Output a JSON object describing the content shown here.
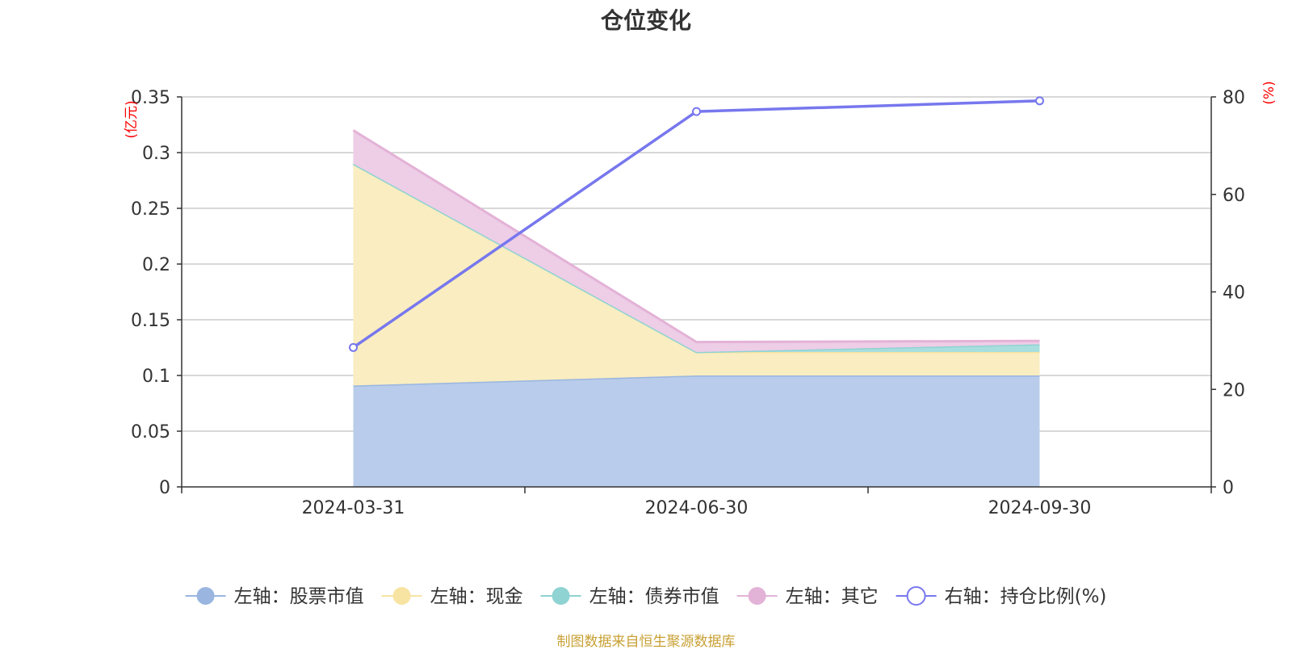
{
  "chart_data": {
    "type": "area",
    "title": "仓位变化",
    "categories": [
      "2024-03-31",
      "2024-06-30",
      "2024-09-30"
    ],
    "left_axis": {
      "unit": "(亿元)",
      "ylim": [
        0,
        0.35
      ],
      "ticks": [
        "0",
        "0.05",
        "0.1",
        "0.15",
        "0.2",
        "0.25",
        "0.3",
        "0.35"
      ]
    },
    "right_axis": {
      "unit": "(%)",
      "ylim": [
        0,
        80
      ],
      "ticks": [
        "0",
        "20",
        "40",
        "60",
        "80"
      ]
    },
    "stack_order": [
      "股票市值",
      "现金",
      "债券市值",
      "其它"
    ],
    "series": [
      {
        "key": "股票市值",
        "name": "左轴：股票市值",
        "axis": "left",
        "kind": "area",
        "values": [
          0.091,
          0.1,
          0.1
        ],
        "color": "#9ab6e0",
        "fill": "#b9cceb"
      },
      {
        "key": "现金",
        "name": "左轴：现金",
        "axis": "left",
        "kind": "area",
        "values": [
          0.199,
          0.021,
          0.021
        ],
        "color": "#f7e3a2",
        "fill": "#f9edc1"
      },
      {
        "key": "债券市值",
        "name": "左轴：债券市值",
        "axis": "left",
        "kind": "area",
        "values": [
          0,
          0,
          0.007
        ],
        "color": "#8fd3d3",
        "fill": "#a8dede"
      },
      {
        "key": "其它",
        "name": "左轴：其它",
        "axis": "left",
        "kind": "area",
        "values": [
          0.03,
          0.009,
          0.003
        ],
        "color": "#e3b2d7",
        "fill": "#eecde6"
      },
      {
        "key": "持仓比例",
        "name": "右轴：持仓比例(%)",
        "axis": "right",
        "kind": "line",
        "values": [
          28.6,
          77,
          79.2
        ],
        "color": "#7777ee"
      }
    ],
    "grid": true,
    "legend_position": "bottom"
  },
  "source_note": "制图数据来自恒生聚源数据库"
}
